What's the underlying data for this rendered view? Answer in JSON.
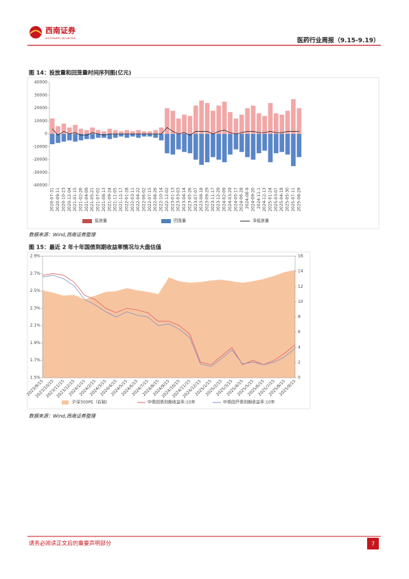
{
  "header": {
    "logo": "西南证券",
    "logo_en": "SOUTHWEST SECURITIES",
    "report": "医药行业周报（9.15-9.19）"
  },
  "figures": [
    {
      "caption": "图 14：投放量和回笼量时间序列图(亿元)",
      "source": "数据来源：Wind,西南证券整理"
    },
    {
      "caption": "图 15：最近 2 年十年国债到期收益率情况与大盘估值",
      "source": "数据来源：Wind,西南证券整理"
    }
  ],
  "footer": {
    "notice": "请务必阅读正文后的重要声明部分",
    "page": "7"
  },
  "chart_data": [
    {
      "type": "bar_line",
      "categories": [
        "2020-07-31",
        "2020-09-11",
        "2020-10-23",
        "2020-12-04",
        "2021-01-15",
        "2021-02-26",
        "2021-04-09",
        "2021-05-21",
        "2021-07-02",
        "2021-08-13",
        "2021-09-24",
        "2021-11-05",
        "2021-12-17",
        "2022-01-28",
        "2022-03-11",
        "2022-04-22",
        "2022-06-02",
        "2022-07-15",
        "2022-08-26",
        "2022-10-14",
        "2022-12-02",
        "2023-01-13",
        "2023-03-03",
        "2023-04-14",
        "2023-05-26",
        "2023-07-07",
        "2023-08-18",
        "2023-09-29",
        "2023-11-17",
        "2023-12-29",
        "2024-02-09",
        "2024-03-29",
        "2024-05-17",
        "2024-06-28",
        "2024-08-9",
        "2024-09-20",
        "2024-11-1",
        "2024-12-13",
        "2025-01-24",
        "2025-03-07",
        "2025-04-18",
        "2025-05-30",
        "2025-07-11",
        "2025-08-29"
      ],
      "series": [
        {
          "name": "投放量",
          "color": "#f2a7a7",
          "legend_color": "#c0504d",
          "kind": "bar",
          "values": [
            12000,
            6000,
            8000,
            5000,
            7000,
            4000,
            3000,
            5000,
            3000,
            2000,
            4000,
            3000,
            2000,
            3000,
            2000,
            3000,
            2000,
            2000,
            3000,
            5000,
            20000,
            18000,
            12000,
            15000,
            14000,
            22000,
            26000,
            24000,
            18000,
            22000,
            25000,
            17000,
            12000,
            15000,
            20000,
            22000,
            16000,
            14000,
            24000,
            16000,
            15000,
            18000,
            27000,
            20000
          ]
        },
        {
          "name": "回笼量",
          "color": "#5a86c8",
          "legend_color": "#4f81bd",
          "kind": "bar",
          "values": [
            -8000,
            -7000,
            -6000,
            -5000,
            -6000,
            -5000,
            -4000,
            -4000,
            -3000,
            -3000,
            -4000,
            -3000,
            -2000,
            -3000,
            -2000,
            -3000,
            -2000,
            -2000,
            -3000,
            -5000,
            -15000,
            -16000,
            -12000,
            -14000,
            -15000,
            -20000,
            -24000,
            -22000,
            -18000,
            -20000,
            -22000,
            -16000,
            -12000,
            -14000,
            -18000,
            -20000,
            -15000,
            -13000,
            -22000,
            -15000,
            -14000,
            -16000,
            -25000,
            -18000
          ]
        },
        {
          "name": "净投放量",
          "color": "#222222",
          "kind": "line",
          "values": [
            4000,
            -1000,
            2000,
            0,
            1000,
            -1000,
            -1000,
            1000,
            0,
            -1000,
            0,
            0,
            0,
            0,
            0,
            0,
            0,
            0,
            0,
            0,
            5000,
            2000,
            0,
            1000,
            -1000,
            2000,
            2000,
            2000,
            0,
            2000,
            3000,
            1000,
            0,
            1000,
            2000,
            2000,
            1000,
            1000,
            2000,
            1000,
            1000,
            2000,
            2000,
            2000
          ]
        }
      ],
      "ylim": [
        -40000,
        40000
      ],
      "yticks": [
        -40000,
        -30000,
        -20000,
        -10000,
        0,
        10000,
        20000,
        30000,
        40000
      ]
    },
    {
      "type": "area_line",
      "categories": [
        "2023/9/15",
        "2023/10/15",
        "2023/11/15",
        "2023/12/15",
        "2024/1/15",
        "2024/2/15",
        "2024/3/15",
        "2024/4/15",
        "2024/5/15",
        "2024/6/15",
        "2024/7/15",
        "2024/8/15",
        "2024/9/15",
        "2024/10/15",
        "2024/11/15",
        "2024/12/15",
        "2025/1/15",
        "2025/2/15",
        "2025/3/15",
        "2025/4/15",
        "2025/5/15",
        "2025/6/15",
        "2025/7/15",
        "2025/8/15",
        "2025/9/15"
      ],
      "series": [
        {
          "name": "沪深300PE（右轴）",
          "color": "#f7c4a0",
          "axis": "y2",
          "kind": "area",
          "values": [
            11.5,
            11.2,
            10.8,
            10.9,
            10.3,
            10.8,
            11.3,
            11.4,
            11.8,
            11.5,
            11.3,
            11.0,
            13.2,
            12.7,
            12.5,
            12.6,
            12.8,
            12.9,
            12.7,
            12.5,
            12.7,
            13.0,
            13.4,
            13.9,
            14.2
          ]
        },
        {
          "name": "中债国债到期收益率:10年",
          "color": "#e06060",
          "kind": "line",
          "values": [
            2.68,
            2.7,
            2.68,
            2.6,
            2.45,
            2.4,
            2.3,
            2.25,
            2.3,
            2.28,
            2.25,
            2.15,
            2.15,
            2.1,
            2.0,
            1.68,
            1.65,
            1.75,
            1.85,
            1.65,
            1.7,
            1.65,
            1.7,
            1.78,
            1.88
          ]
        },
        {
          "name": "中债国开债到期收益率:10年",
          "color": "#7b8fc4",
          "kind": "line",
          "values": [
            2.66,
            2.68,
            2.64,
            2.56,
            2.4,
            2.34,
            2.26,
            2.2,
            2.26,
            2.22,
            2.2,
            2.1,
            2.12,
            2.06,
            1.96,
            1.66,
            1.63,
            1.72,
            1.82,
            1.66,
            1.68,
            1.65,
            1.68,
            1.74,
            1.84
          ]
        }
      ],
      "ylim": [
        1.5,
        2.9
      ],
      "yticks": [
        {
          "value": 1.5,
          "label": "1.5%"
        },
        {
          "value": 1.7,
          "label": "1.7%"
        },
        {
          "value": 1.9,
          "label": "1.9%"
        },
        {
          "value": 2.1,
          "label": "2.1%"
        },
        {
          "value": 2.3,
          "label": "2.3%"
        },
        {
          "value": 2.5,
          "label": "2.5%"
        },
        {
          "value": 2.7,
          "label": "2.7%"
        },
        {
          "value": 2.9,
          "label": "2.9%"
        }
      ],
      "y2lim": [
        0,
        16
      ],
      "y2ticks": [
        0,
        2,
        4,
        6,
        8,
        10,
        12,
        14,
        16
      ]
    }
  ]
}
